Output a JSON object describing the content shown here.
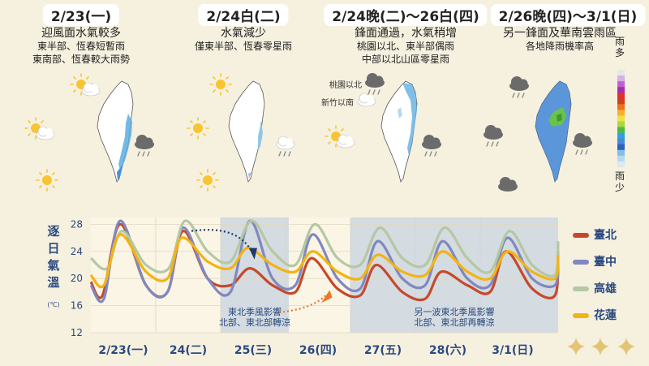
{
  "panels": [
    {
      "date": "2/23(一)",
      "lines": [
        "迎風面水氣較多",
        "東半部、恆春短暫雨",
        "東南部、恆春較大雨勢"
      ],
      "side_labels": []
    },
    {
      "date": "2/24白(二)",
      "lines": [
        "水氣減少",
        "僅東半部、恆春零星雨"
      ],
      "side_labels": []
    },
    {
      "date": "2/24晚(二)〜26白(四)",
      "lines": [
        "鋒面通過，水氣稍增",
        "桃園以北、東半部偶雨",
        "中部以北山區零星雨"
      ],
      "side_labels": [
        "桃園以北",
        "新竹以南"
      ]
    },
    {
      "date": "2/26晚(四)〜3/1(日)",
      "lines": [
        "另一鋒面及華南雲雨區",
        "各地降雨機率高"
      ],
      "side_labels": []
    }
  ],
  "rain_legend": {
    "top": "雨多",
    "bottom": "雨少",
    "colors": [
      "#e6e6e6",
      "#d6b0e8",
      "#c060d0",
      "#a030b0",
      "#e03030",
      "#d04020",
      "#f07020",
      "#f8b030",
      "#f0e040",
      "#a8d840",
      "#50b840",
      "#30a0e0",
      "#4888d8",
      "#3060c0",
      "#80c0e8",
      "#b8d8f0",
      "#dde8f0"
    ]
  },
  "chart_data": {
    "type": "line",
    "ylabel": "逐日氣溫",
    "yunit": "(℃)",
    "ylim": [
      12,
      29
    ],
    "yticks": [
      12,
      16,
      20,
      24,
      28
    ],
    "xlim": [
      0,
      7.2
    ],
    "xticks": [
      {
        "x": 0.5,
        "label": "2/23(一)"
      },
      {
        "x": 1.5,
        "label": "24(二)"
      },
      {
        "x": 2.5,
        "label": "25(三)"
      },
      {
        "x": 3.5,
        "label": "26(四)"
      },
      {
        "x": 4.5,
        "label": "27(五)"
      },
      {
        "x": 5.5,
        "label": "28(六)"
      },
      {
        "x": 6.5,
        "label": "3/1(日)"
      }
    ],
    "shaded_regions": [
      {
        "x0": 2.0,
        "x1": 3.05,
        "text": [
          "東北季風影響",
          "北部、東北部轉涼"
        ]
      },
      {
        "x0": 4.0,
        "x1": 7.2,
        "text": [
          "另一波東北季風影響",
          "北部、東北部再轉涼"
        ]
      }
    ],
    "series": [
      {
        "name": "臺北",
        "color": "#c6492c",
        "points": [
          [
            0,
            19.5
          ],
          [
            0.18,
            17.5
          ],
          [
            0.45,
            28
          ],
          [
            0.85,
            19
          ],
          [
            1.18,
            18
          ],
          [
            1.42,
            27
          ],
          [
            1.8,
            20
          ],
          [
            2.15,
            19
          ],
          [
            2.45,
            21.5
          ],
          [
            2.8,
            19
          ],
          [
            3.15,
            18
          ],
          [
            3.4,
            23
          ],
          [
            3.8,
            18.5
          ],
          [
            4.15,
            17.5
          ],
          [
            4.4,
            22
          ],
          [
            4.8,
            18
          ],
          [
            5.15,
            17
          ],
          [
            5.4,
            21
          ],
          [
            5.8,
            19
          ],
          [
            6.15,
            18
          ],
          [
            6.4,
            24
          ],
          [
            6.8,
            18.5
          ],
          [
            7.15,
            17.5
          ],
          [
            7.2,
            24
          ]
        ]
      },
      {
        "name": "臺中",
        "color": "#8088c0",
        "points": [
          [
            0,
            19
          ],
          [
            0.2,
            17
          ],
          [
            0.45,
            28.5
          ],
          [
            0.85,
            19
          ],
          [
            1.18,
            18
          ],
          [
            1.42,
            27.5
          ],
          [
            1.8,
            20
          ],
          [
            2.15,
            18
          ],
          [
            2.45,
            28.5
          ],
          [
            2.8,
            20
          ],
          [
            3.15,
            19
          ],
          [
            3.42,
            26.5
          ],
          [
            3.8,
            20
          ],
          [
            4.15,
            18.5
          ],
          [
            4.42,
            25.5
          ],
          [
            4.8,
            20
          ],
          [
            5.15,
            19
          ],
          [
            5.42,
            25.5
          ],
          [
            5.8,
            20
          ],
          [
            6.15,
            19
          ],
          [
            6.42,
            26
          ],
          [
            6.8,
            20
          ],
          [
            7.15,
            19
          ],
          [
            7.2,
            23
          ]
        ]
      },
      {
        "name": "高雄",
        "color": "#b4c8a4",
        "points": [
          [
            0,
            23
          ],
          [
            0.25,
            21.5
          ],
          [
            0.48,
            27
          ],
          [
            0.85,
            22
          ],
          [
            1.2,
            21.5
          ],
          [
            1.45,
            28.5
          ],
          [
            1.8,
            24
          ],
          [
            2.15,
            22.5
          ],
          [
            2.47,
            28.5
          ],
          [
            2.8,
            24
          ],
          [
            3.15,
            22
          ],
          [
            3.45,
            28
          ],
          [
            3.8,
            23
          ],
          [
            4.15,
            22
          ],
          [
            4.45,
            27.5
          ],
          [
            4.8,
            23
          ],
          [
            5.15,
            22
          ],
          [
            5.45,
            27.5
          ],
          [
            5.8,
            23
          ],
          [
            6.15,
            21
          ],
          [
            6.45,
            27
          ],
          [
            6.8,
            22
          ],
          [
            7.15,
            20.5
          ],
          [
            7.2,
            25.5
          ]
        ]
      },
      {
        "name": "花蓮",
        "color": "#f2b413",
        "points": [
          [
            0,
            20.5
          ],
          [
            0.2,
            19
          ],
          [
            0.45,
            26.5
          ],
          [
            0.85,
            21
          ],
          [
            1.18,
            20
          ],
          [
            1.4,
            26
          ],
          [
            1.8,
            22.5
          ],
          [
            2.15,
            21.5
          ],
          [
            2.42,
            24.5
          ],
          [
            2.8,
            22
          ],
          [
            3.15,
            21
          ],
          [
            3.42,
            24
          ],
          [
            3.8,
            21
          ],
          [
            4.15,
            20
          ],
          [
            4.42,
            23.5
          ],
          [
            4.8,
            21
          ],
          [
            5.15,
            20.5
          ],
          [
            5.42,
            24
          ],
          [
            5.8,
            21
          ],
          [
            6.15,
            20
          ],
          [
            6.42,
            24
          ],
          [
            6.8,
            21
          ],
          [
            7.15,
            20
          ],
          [
            7.2,
            23.5
          ]
        ]
      }
    ]
  }
}
